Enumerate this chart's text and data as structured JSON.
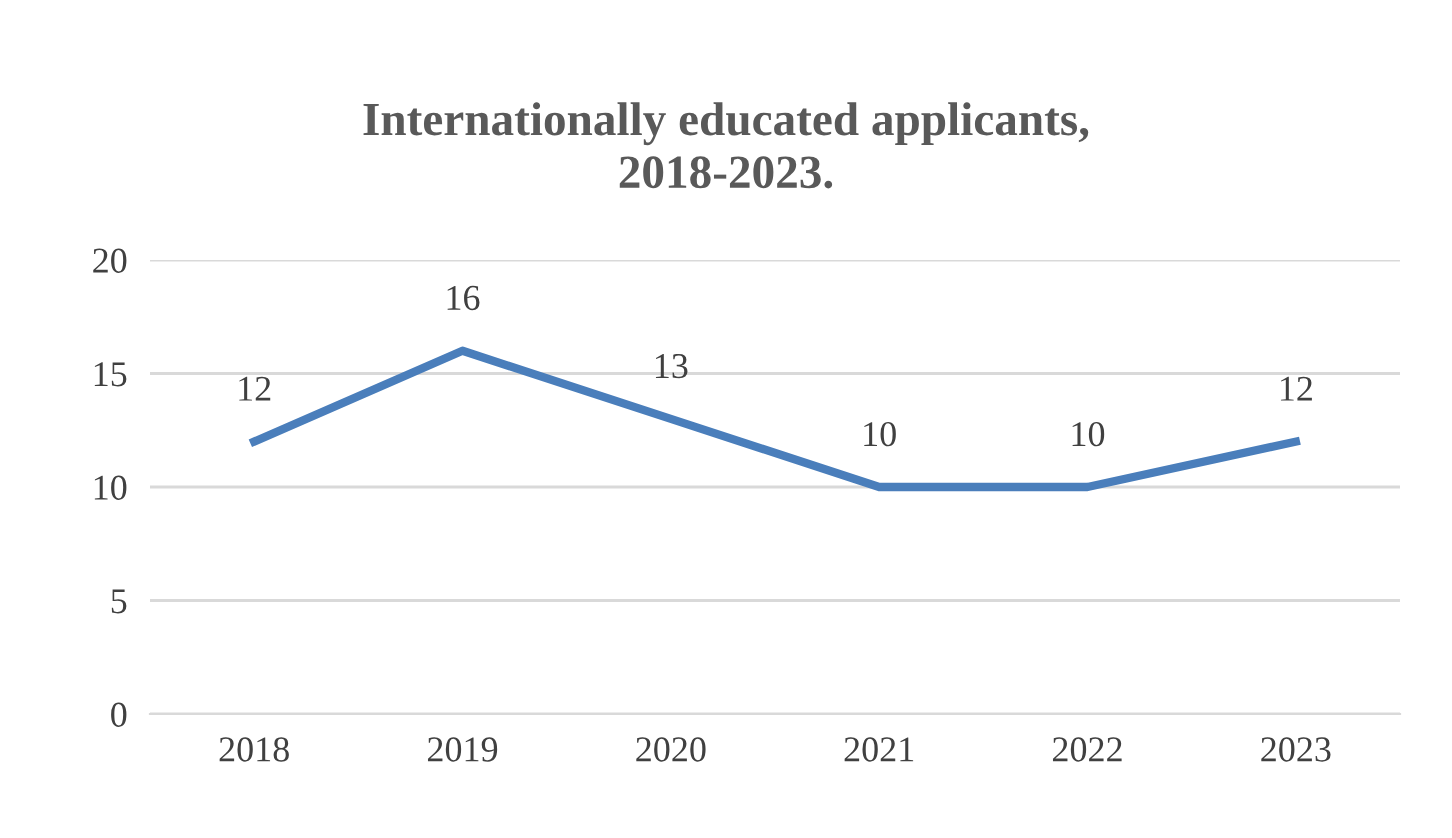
{
  "chart_data": {
    "type": "line",
    "title": "Internationally educated applicants,\n2018-2023.",
    "categories": [
      "2018",
      "2019",
      "2020",
      "2021",
      "2022",
      "2023"
    ],
    "series": [
      {
        "color": "#4a7ebb",
        "values": [
          12,
          16,
          13,
          10,
          10,
          12
        ]
      }
    ],
    "ylim": [
      0,
      20
    ],
    "yticks": [
      0,
      5,
      10,
      15,
      20
    ],
    "grid": "y",
    "data_labels": true,
    "marker": "none",
    "line_style": "solid"
  }
}
